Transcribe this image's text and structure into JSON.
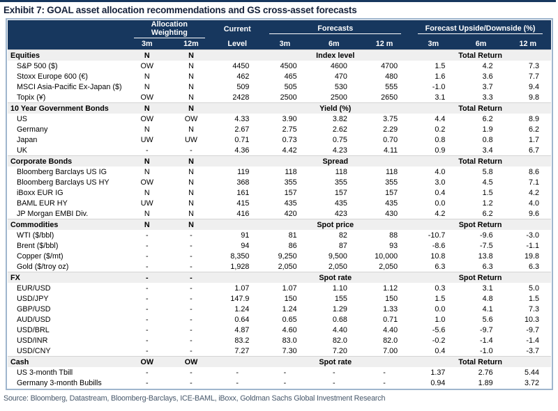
{
  "title": "Exhibit 7: GOAL asset allocation recommendations and GS cross-asset forecasts",
  "source": "Source: Bloomberg, Datastream, Bloomberg-Barclays, ICE-BAML, iBoxx, Goldman Sachs Global Investment Research",
  "colors": {
    "header_navy": "#17375E",
    "section_gray": "#EFEFEF",
    "frame_blue": "#9FB6CE"
  },
  "header": {
    "group_allocation": "Allocation Weighting",
    "group_current_line1": "Current",
    "group_current_line2": "Level",
    "group_forecasts": "Forecasts",
    "group_upside": "Forecast Upside/Downside (%)",
    "sub": [
      "3m",
      "12m",
      "3m",
      "6m",
      "12 m",
      "3m",
      "6m",
      "12 m"
    ]
  },
  "sections": [
    {
      "label": "Equities",
      "w3m": "N",
      "w12m": "N",
      "forecast_group": "Index level",
      "upside_group": "Total Return",
      "rows": [
        {
          "label": "S&P 500 ($)",
          "w3m": "OW",
          "w12m": "N",
          "current": "4450",
          "f": [
            "4500",
            "4600",
            "4700"
          ],
          "u": [
            "1.5",
            "4.2",
            "7.3"
          ]
        },
        {
          "label": "Stoxx Europe 600 (€)",
          "w3m": "N",
          "w12m": "N",
          "current": "462",
          "f": [
            "465",
            "470",
            "480"
          ],
          "u": [
            "1.6",
            "3.6",
            "7.7"
          ]
        },
        {
          "label": "MSCI Asia-Pacific Ex-Japan ($)",
          "w3m": "N",
          "w12m": "N",
          "current": "509",
          "f": [
            "505",
            "530",
            "555"
          ],
          "u": [
            "-1.0",
            "3.7",
            "9.4"
          ]
        },
        {
          "label": "Topix (¥)",
          "w3m": "OW",
          "w12m": "N",
          "current": "2428",
          "f": [
            "2500",
            "2500",
            "2650"
          ],
          "u": [
            "3.1",
            "3.3",
            "9.8"
          ]
        }
      ]
    },
    {
      "label": "10 Year Government Bonds",
      "w3m": "N",
      "w12m": "N",
      "forecast_group": "Yield (%)",
      "upside_group": "Total Return",
      "rows": [
        {
          "label": "US",
          "w3m": "OW",
          "w12m": "OW",
          "current": "4.33",
          "f": [
            "3.90",
            "3.82",
            "3.75"
          ],
          "u": [
            "4.4",
            "6.2",
            "8.9"
          ]
        },
        {
          "label": "Germany",
          "w3m": "N",
          "w12m": "N",
          "current": "2.67",
          "f": [
            "2.75",
            "2.62",
            "2.29"
          ],
          "u": [
            "0.2",
            "1.9",
            "6.2"
          ]
        },
        {
          "label": "Japan",
          "w3m": "UW",
          "w12m": "UW",
          "current": "0.71",
          "f": [
            "0.73",
            "0.75",
            "0.70"
          ],
          "u": [
            "0.8",
            "0.8",
            "1.7"
          ]
        },
        {
          "label": "UK",
          "w3m": "-",
          "w12m": "-",
          "current": "4.36",
          "f": [
            "4.42",
            "4.23",
            "4.11"
          ],
          "u": [
            "0.9",
            "3.4",
            "6.7"
          ]
        }
      ]
    },
    {
      "label": "Corporate Bonds",
      "w3m": "N",
      "w12m": "N",
      "forecast_group": "Spread",
      "upside_group": "Total Return",
      "rows": [
        {
          "label": "Bloomberg Barclays US IG",
          "w3m": "N",
          "w12m": "N",
          "current": "119",
          "f": [
            "118",
            "118",
            "118"
          ],
          "u": [
            "4.0",
            "5.8",
            "8.6"
          ]
        },
        {
          "label": "Bloomberg Barclays US HY",
          "w3m": "OW",
          "w12m": "N",
          "current": "368",
          "f": [
            "355",
            "355",
            "355"
          ],
          "u": [
            "3.0",
            "4.5",
            "7.1"
          ]
        },
        {
          "label": "iBoxx EUR IG",
          "w3m": "N",
          "w12m": "N",
          "current": "161",
          "f": [
            "157",
            "157",
            "157"
          ],
          "u": [
            "0.4",
            "1.5",
            "4.2"
          ]
        },
        {
          "label": "BAML EUR HY",
          "w3m": "UW",
          "w12m": "N",
          "current": "415",
          "f": [
            "435",
            "435",
            "435"
          ],
          "u": [
            "0.0",
            "1.2",
            "4.0"
          ]
        },
        {
          "label": "JP Morgan EMBI Div.",
          "w3m": "N",
          "w12m": "N",
          "current": "416",
          "f": [
            "420",
            "423",
            "430"
          ],
          "u": [
            "4.2",
            "6.2",
            "9.6"
          ]
        }
      ]
    },
    {
      "label": "Commodities",
      "w3m": "N",
      "w12m": "N",
      "forecast_group": "Spot price",
      "upside_group": "Spot Return",
      "rows": [
        {
          "label": "WTI ($/bbl)",
          "w3m": "-",
          "w12m": "-",
          "current": "91",
          "f": [
            "81",
            "82",
            "88"
          ],
          "u": [
            "-10.7",
            "-9.6",
            "-3.0"
          ]
        },
        {
          "label": "Brent ($/bbl)",
          "w3m": "-",
          "w12m": "-",
          "current": "94",
          "f": [
            "86",
            "87",
            "93"
          ],
          "u": [
            "-8.6",
            "-7.5",
            "-1.1"
          ]
        },
        {
          "label": "Copper ($/mt)",
          "w3m": "-",
          "w12m": "-",
          "current": "8,350",
          "f": [
            "9,250",
            "9,500",
            "10,000"
          ],
          "u": [
            "10.8",
            "13.8",
            "19.8"
          ]
        },
        {
          "label": "Gold ($/troy oz)",
          "w3m": "-",
          "w12m": "-",
          "current": "1,928",
          "f": [
            "2,050",
            "2,050",
            "2,050"
          ],
          "u": [
            "6.3",
            "6.3",
            "6.3"
          ]
        }
      ]
    },
    {
      "label": "FX",
      "w3m": "-",
      "w12m": "-",
      "forecast_group": "Spot rate",
      "upside_group": "Spot Return",
      "rows": [
        {
          "label": "EUR/USD",
          "w3m": "-",
          "w12m": "-",
          "current": "1.07",
          "f": [
            "1.07",
            "1.10",
            "1.12"
          ],
          "u": [
            "0.3",
            "3.1",
            "5.0"
          ]
        },
        {
          "label": "USD/JPY",
          "w3m": "-",
          "w12m": "-",
          "current": "147.9",
          "f": [
            "150",
            "155",
            "150"
          ],
          "u": [
            "1.5",
            "4.8",
            "1.5"
          ]
        },
        {
          "label": "GBP/USD",
          "w3m": "-",
          "w12m": "-",
          "current": "1.24",
          "f": [
            "1.24",
            "1.29",
            "1.33"
          ],
          "u": [
            "0.0",
            "4.1",
            "7.3"
          ]
        },
        {
          "label": "AUD/USD",
          "w3m": "-",
          "w12m": "-",
          "current": "0.64",
          "f": [
            "0.65",
            "0.68",
            "0.71"
          ],
          "u": [
            "1.0",
            "5.6",
            "10.3"
          ]
        },
        {
          "label": "USD/BRL",
          "w3m": "-",
          "w12m": "-",
          "current": "4.87",
          "f": [
            "4.60",
            "4.40",
            "4.40"
          ],
          "u": [
            "-5.6",
            "-9.7",
            "-9.7"
          ]
        },
        {
          "label": "USD/INR",
          "w3m": "-",
          "w12m": "-",
          "current": "83.2",
          "f": [
            "83.0",
            "82.0",
            "82.0"
          ],
          "u": [
            "-0.2",
            "-1.4",
            "-1.4"
          ]
        },
        {
          "label": "USD/CNY",
          "w3m": "-",
          "w12m": "-",
          "current": "7.27",
          "f": [
            "7.30",
            "7.20",
            "7.00"
          ],
          "u": [
            "0.4",
            "-1.0",
            "-3.7"
          ]
        }
      ]
    },
    {
      "label": "Cash",
      "w3m": "OW",
      "w12m": "OW",
      "forecast_group": "Spot rate",
      "upside_group": "Total Return",
      "rows": [
        {
          "label": "US 3-month Tbill",
          "w3m": "-",
          "w12m": "-",
          "current": "-",
          "f": [
            "-",
            "-",
            "-"
          ],
          "u": [
            "1.37",
            "2.76",
            "5.44"
          ]
        },
        {
          "label": "Germany 3-month Bubills",
          "w3m": "-",
          "w12m": "-",
          "current": "-",
          "f": [
            "-",
            "-",
            "-"
          ],
          "u": [
            "0.94",
            "1.89",
            "3.72"
          ]
        }
      ]
    }
  ]
}
